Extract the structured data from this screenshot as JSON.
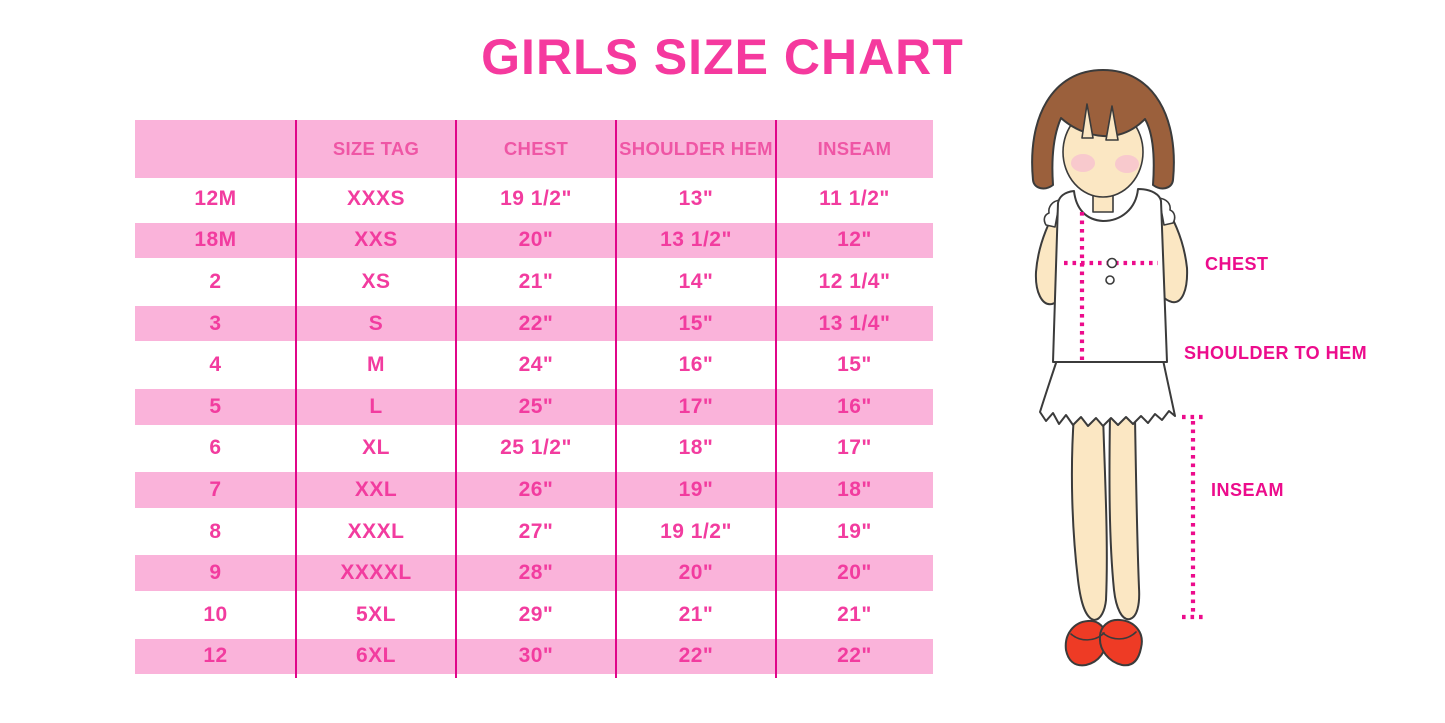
{
  "title": "GIRLS SIZE CHART",
  "chart_data": {
    "type": "table",
    "title": "GIRLS SIZE CHART",
    "columns": [
      "",
      "SIZE TAG",
      "CHEST",
      "SHOULDER HEM",
      "INSEAM"
    ],
    "rows": [
      [
        "12M",
        "XXXS",
        "19 1/2\"",
        "13\"",
        "11 1/2\""
      ],
      [
        "18M",
        "XXS",
        "20\"",
        "13 1/2\"",
        "12\""
      ],
      [
        "2",
        "XS",
        "21\"",
        "14\"",
        "12 1/4\""
      ],
      [
        "3",
        "S",
        "22\"",
        "15\"",
        "13 1/4\""
      ],
      [
        "4",
        "M",
        "24\"",
        "16\"",
        "15\""
      ],
      [
        "5",
        "L",
        "25\"",
        "17\"",
        "16\""
      ],
      [
        "6",
        "XL",
        "25 1/2\"",
        "18\"",
        "17\""
      ],
      [
        "7",
        "XXL",
        "26\"",
        "19\"",
        "18\""
      ],
      [
        "8",
        "XXXL",
        "27\"",
        "19 1/2\"",
        "19\""
      ],
      [
        "9",
        "XXXXL",
        "28\"",
        "20\"",
        "20\""
      ],
      [
        "10",
        "5XL",
        "29\"",
        "21\"",
        "21\""
      ],
      [
        "12",
        "6XL",
        "30\"",
        "22\"",
        "22\""
      ]
    ]
  },
  "figure": {
    "labels": {
      "chest": "CHEST",
      "shoulder_to_hem": "SHOULDER TO HEM",
      "inseam": "INSEAM"
    }
  },
  "colors": {
    "title_pink": "#F5399E",
    "row_pink": "#FAB3DA",
    "divider_magenta": "#E00689",
    "header_text": "#EF56A5",
    "cell_text": "#F23C9F",
    "label_magenta": "#EC0C8C",
    "outline": "#3B3B3B",
    "skin": "#FBE7C3",
    "hair_brown": "#9B603C",
    "blush": "#F7C3CF",
    "shoe_red": "#EE3B25"
  }
}
